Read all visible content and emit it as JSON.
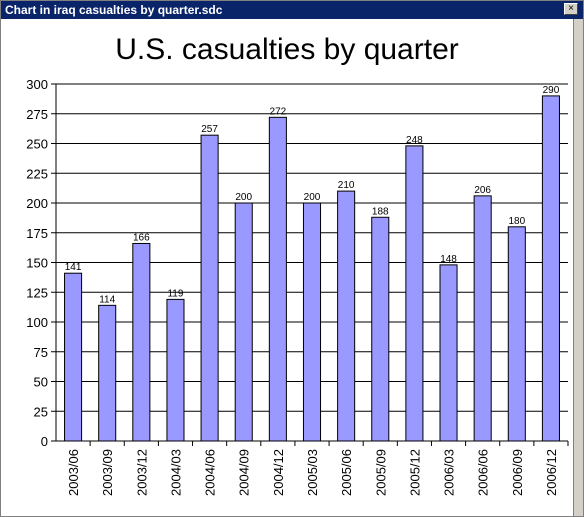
{
  "window": {
    "title": "Chart in iraq casualties by quarter.sdc",
    "close_glyph": "×"
  },
  "chart_data": {
    "type": "bar",
    "title": "U.S. casualties by quarter",
    "xlabel": "",
    "ylabel": "",
    "categories": [
      "2003/06",
      "2003/09",
      "2003/12",
      "2004/03",
      "2004/06",
      "2004/09",
      "2004/12",
      "2005/03",
      "2005/06",
      "2005/09",
      "2005/12",
      "2006/03",
      "2006/06",
      "2006/09",
      "2006/12"
    ],
    "values": [
      141,
      114,
      166,
      119,
      257,
      200,
      272,
      200,
      210,
      188,
      248,
      148,
      206,
      180,
      290
    ],
    "ylim": [
      0,
      300
    ],
    "yticks": [
      0,
      25,
      50,
      75,
      100,
      125,
      150,
      175,
      200,
      225,
      250,
      275,
      300
    ],
    "grid": true,
    "legend": "none",
    "bar_color": "#9999ff",
    "data_labels": true
  }
}
